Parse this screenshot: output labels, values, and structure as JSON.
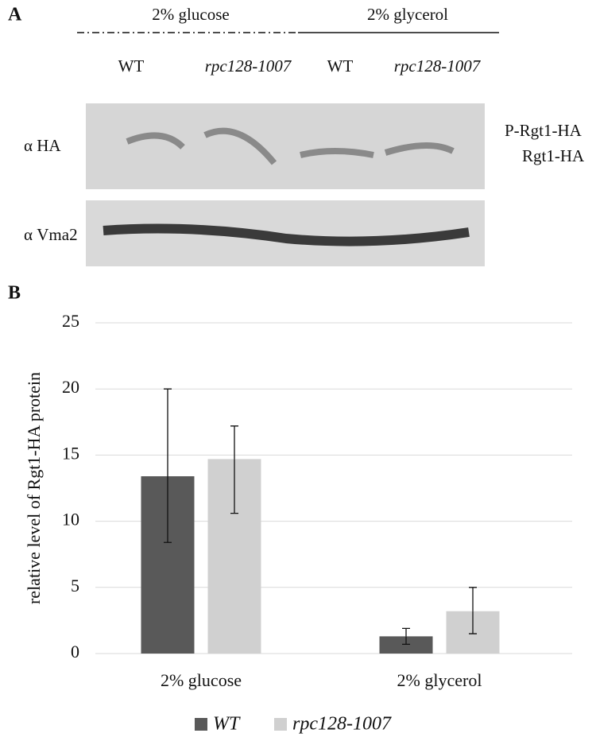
{
  "panel_a": {
    "label": "A",
    "conditions": [
      "2% glucose",
      "2% glycerol"
    ],
    "lanes": [
      "WT",
      "rpc128-1007",
      "WT",
      "rpc128-1007"
    ],
    "blots": [
      "α HA",
      "α Vma2"
    ],
    "bands": [
      "P-Rgt1-HA",
      "Rgt1-HA"
    ]
  },
  "chart_data": {
    "type": "bar",
    "panel_label": "B",
    "ylabel": "relative level of Rgt1-HA protein",
    "categories": [
      "2% glucose",
      "2% glycerol"
    ],
    "series": [
      {
        "name": "WT",
        "color": "#595959",
        "values": [
          13.4,
          1.3
        ],
        "err_plus": [
          6.6,
          0.6
        ],
        "err_minus": [
          5.0,
          0.6
        ]
      },
      {
        "name": "rpc128-1007",
        "color": "#d0d0d0",
        "values": [
          14.7,
          3.2
        ],
        "err_plus": [
          2.5,
          1.8
        ],
        "err_minus": [
          4.1,
          1.7
        ]
      }
    ],
    "ylim": [
      0,
      25
    ],
    "yticks": [
      0,
      5,
      10,
      15,
      20,
      25
    ],
    "grid": true,
    "legend": "bottom"
  }
}
